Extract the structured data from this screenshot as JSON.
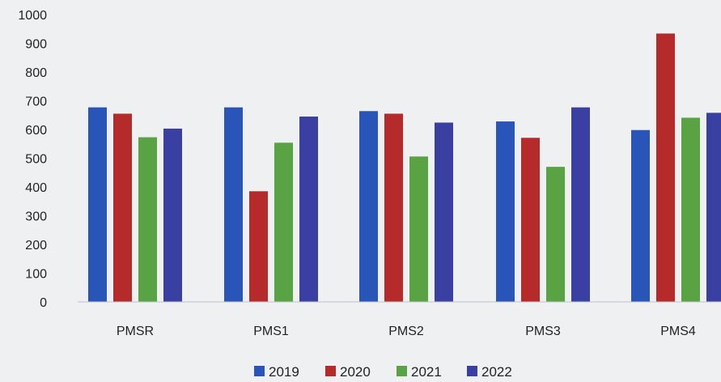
{
  "chart_data": {
    "type": "bar",
    "title": "",
    "xlabel": "",
    "ylabel": "",
    "categories": [
      "PMSR",
      "PMS1",
      "PMS2",
      "PMS3",
      "PMS4"
    ],
    "ylim": [
      0,
      1000
    ],
    "yticks": [
      "0",
      "100",
      "200",
      "300",
      "400",
      "500",
      "600",
      "700",
      "800",
      "900",
      "1000"
    ],
    "grid": false,
    "legend_position": "bottom",
    "series": [
      {
        "name": "2019",
        "color": "#2a55b8",
        "values": [
          677,
          677,
          664,
          628,
          598
        ]
      },
      {
        "name": "2020",
        "color": "#b52a2a",
        "values": [
          655,
          385,
          655,
          571,
          934
        ]
      },
      {
        "name": "2021",
        "color": "#5aa344",
        "values": [
          573,
          554,
          506,
          470,
          641
        ]
      },
      {
        "name": "2022",
        "color": "#3a3fa2",
        "values": [
          603,
          645,
          624,
          677,
          658
        ]
      }
    ]
  }
}
